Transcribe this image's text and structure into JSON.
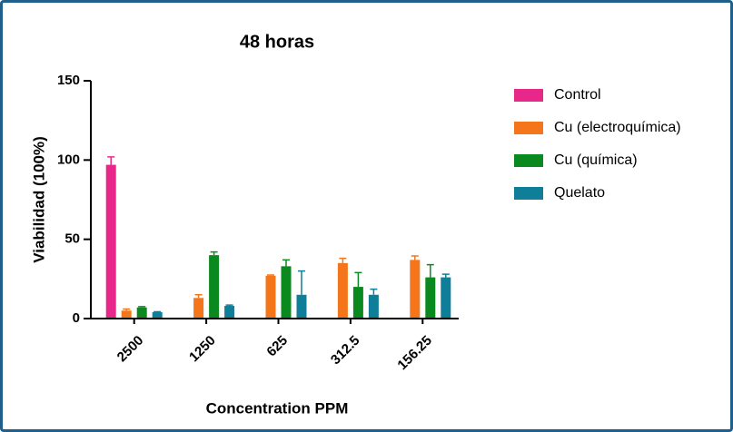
{
  "chart_data": {
    "type": "bar",
    "title": "48 horas",
    "x_label": "Concentration PPM",
    "y_label": "Viabilidad (100%)",
    "categories": [
      "2500",
      "1250",
      "625",
      "312.5",
      "156.25"
    ],
    "series": [
      {
        "name": "Control",
        "color": "#e8278a",
        "values": [
          97,
          null,
          null,
          null,
          null
        ],
        "errors": [
          5,
          null,
          null,
          null,
          null
        ]
      },
      {
        "name": "Cu (electroquímica)",
        "color": "#f5761a",
        "values": [
          5,
          13,
          27,
          35,
          37
        ],
        "errors": [
          1,
          2,
          0.5,
          3,
          2.5
        ]
      },
      {
        "name": "Cu (química)",
        "color": "#0a8a1e",
        "values": [
          7,
          40,
          33,
          20,
          26
        ],
        "errors": [
          0.5,
          2,
          4,
          9,
          8
        ]
      },
      {
        "name": "Quelato",
        "color": "#0f7f99",
        "values": [
          4,
          8,
          15,
          15,
          26
        ],
        "errors": [
          0.3,
          0.5,
          15,
          3.5,
          2
        ]
      }
    ],
    "ylim": [
      0,
      150
    ],
    "yticks": [
      0,
      50,
      100,
      150
    ],
    "legend": "right"
  }
}
